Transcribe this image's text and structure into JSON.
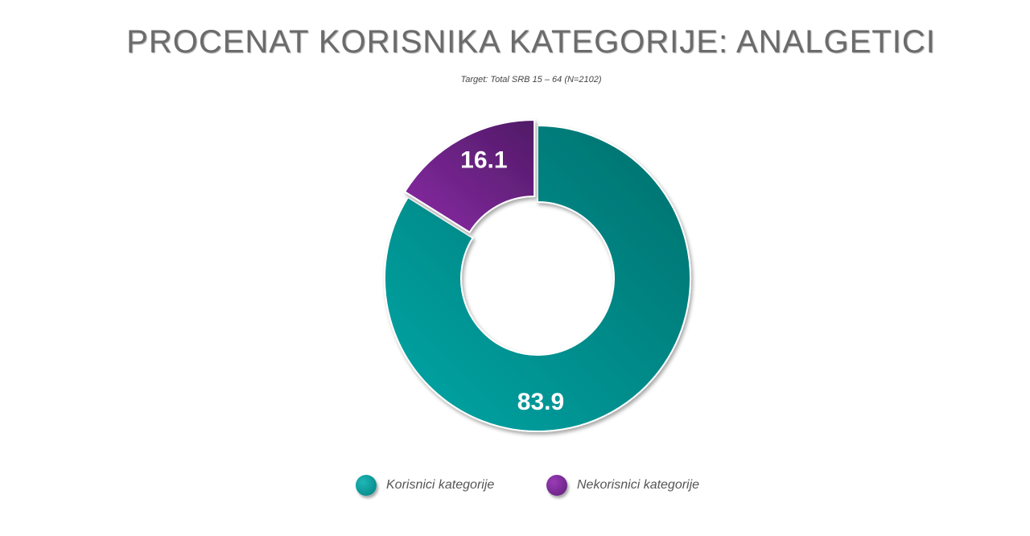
{
  "title": "PROCENAT KORISNIKA KATEGORIJE: ANALGETICI",
  "subtitle": "Target: Total SRB 15 – 64 (N=2102)",
  "chart_data": {
    "type": "pie",
    "donut": true,
    "categories": [
      "Korisnici kategorije",
      "Nekorisnici kategorije"
    ],
    "values": [
      83.9,
      16.1
    ],
    "labels": [
      "83.9",
      "16.1"
    ],
    "colors": [
      "#00999a",
      "#772596"
    ],
    "legend": "bottom"
  }
}
